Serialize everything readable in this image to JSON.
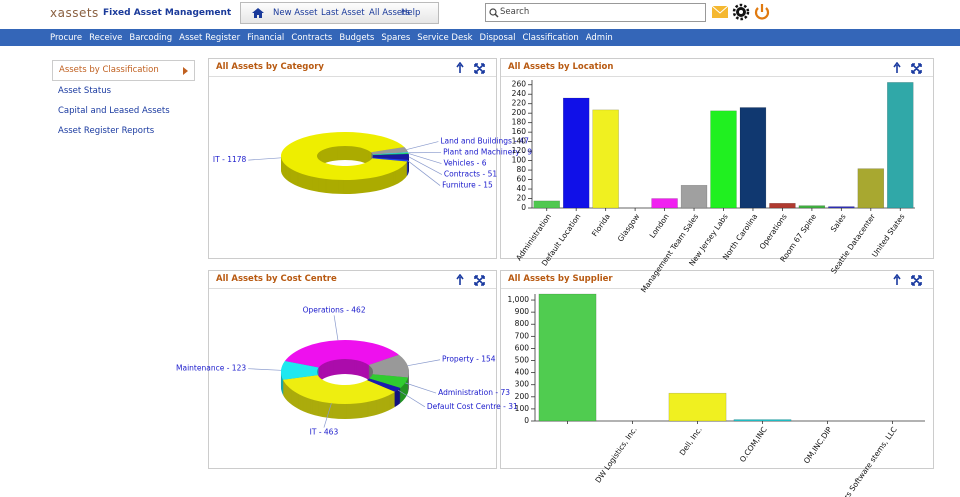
{
  "header": {
    "logo": "xassets",
    "app_title": "Fixed Asset Management",
    "nav": [
      "New Asset",
      "Last Asset",
      "All Assets",
      "Help"
    ],
    "search_placeholder": "Search"
  },
  "menu": [
    "Procure",
    "Receive",
    "Barcoding",
    "Asset Register",
    "Financial",
    "Contracts",
    "Budgets",
    "Spares",
    "Service Desk",
    "Disposal",
    "Classification",
    "Admin"
  ],
  "sidebar": [
    "Assets by Classification",
    "Asset Status",
    "Capital and Leased Assets",
    "Asset Register Reports"
  ],
  "chart_data": [
    {
      "type": "pie",
      "title": "All Assets by Category",
      "values": [
        47,
        9,
        6,
        51,
        15,
        1178
      ],
      "value_labels": [
        "Land and Buildings - 47",
        "Plant and Machinery - 9",
        "Vehicles - 6",
        "Contracts - 51",
        "Furniture - 15",
        "IT - 1178"
      ],
      "colors": [
        "#9a9a9a",
        "#22e0e8",
        "#22cc22",
        "#1a1aa0",
        "#2244ee",
        "#eeee00"
      ]
    },
    {
      "type": "bar",
      "title": "All Assets by Location",
      "categories": [
        "Administration",
        "Default Location",
        "Florida",
        "Glasgow",
        "London",
        "Management Team Sales",
        "New Jersey Labs",
        "North Carolina",
        "Operations",
        "Room 67 Spine",
        "Sales",
        "Seattle Datacenter",
        "United States"
      ],
      "values": [
        15,
        232,
        207,
        0,
        20,
        48,
        205,
        212,
        10,
        5,
        3,
        83,
        265
      ],
      "colors": [
        "#50c850",
        "#1010e8",
        "#f0f020",
        "#888888",
        "#f020f0",
        "#a0a0a0",
        "#20f020",
        "#103870",
        "#b03a30",
        "#40b040",
        "#3030c0",
        "#a8a830",
        "#30a8a8"
      ],
      "ylim": [
        0,
        270
      ],
      "yticks": [
        0,
        20,
        40,
        60,
        80,
        100,
        120,
        140,
        160,
        180,
        200,
        220,
        240,
        260
      ]
    },
    {
      "type": "pie",
      "title": "All Assets by Cost Centre",
      "values": [
        462,
        154,
        73,
        31,
        463,
        123
      ],
      "value_labels": [
        "Operations - 462",
        "Property - 154",
        "Administration - 73",
        "Default Cost Centre - 31",
        "IT - 463",
        "Maintenance - 123"
      ],
      "colors": [
        "#ee10ee",
        "#999999",
        "#30cc30",
        "#1a1ab0",
        "#eeee10",
        "#20e8f0"
      ]
    },
    {
      "type": "bar",
      "title": "All Assets by Supplier",
      "categories": [
        null,
        "DW Logistics, Inc.",
        "Dell, Inc.",
        "O.COM,INC",
        "OM,INC.DIP",
        "ers Software stems, LLC"
      ],
      "values": [
        1050,
        0,
        230,
        12,
        0,
        0
      ],
      "colors": [
        "#50cc50",
        "#1010e8",
        "#f0f020",
        "#20c8d0",
        "#888888",
        "#a0a0a0"
      ],
      "ylim": [
        0,
        1050
      ],
      "yticks": [
        0,
        100,
        200,
        300,
        400,
        500,
        600,
        700,
        800,
        900,
        {
          "value": 1000,
          "label": "1,000"
        }
      ]
    }
  ]
}
